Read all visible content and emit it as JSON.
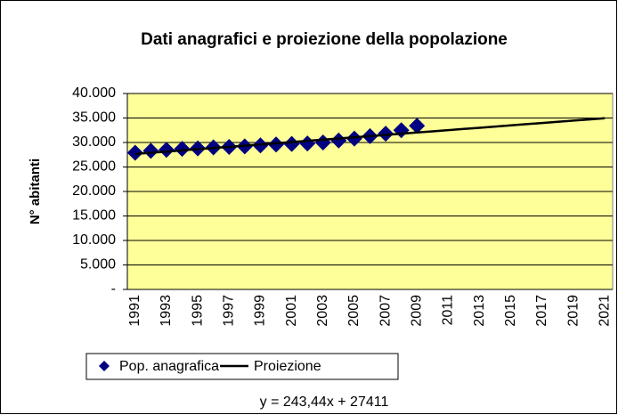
{
  "chart_data": {
    "type": "line",
    "title": "Dati anagrafici e proiezione della popolazione",
    "y_label": "N° abitanti",
    "annotation": "y = 243,44x + 27411",
    "categories": [
      "1991",
      null,
      "1993",
      null,
      "1995",
      null,
      "1997",
      null,
      "1999",
      null,
      "2001",
      null,
      "2003",
      null,
      "2005",
      null,
      "2007",
      null,
      "2009",
      null,
      "2011",
      null,
      "2013",
      null,
      "2015",
      null,
      "2017",
      null,
      "2019",
      null,
      "2021"
    ],
    "series": [
      {
        "name": "Pop. anagrafica",
        "color": "#000080",
        "marker": "diamond",
        "values": [
          27900,
          28300,
          28500,
          28700,
          28800,
          29000,
          29100,
          29200,
          29400,
          29600,
          29700,
          29800,
          30000,
          30400,
          30800,
          31300,
          31800,
          32500,
          33400,
          null,
          null,
          null,
          null,
          null,
          null,
          null,
          null,
          null,
          null,
          null,
          null
        ]
      },
      {
        "name": "Proiezione",
        "color": "#000000",
        "marker": "none",
        "values": [
          27654,
          27898,
          28141,
          28385,
          28628,
          28872,
          29115,
          29359,
          29602,
          29845,
          30089,
          30332,
          30576,
          30819,
          31063,
          31306,
          31549,
          31793,
          32036,
          32280,
          32523,
          32767,
          33010,
          33254,
          33497,
          33740,
          33984,
          34227,
          34471,
          34714,
          34958
        ]
      }
    ],
    "ylim": [
      0,
      40000
    ],
    "yticks": [
      {
        "value": 0,
        "label": "-"
      },
      {
        "value": 5000,
        "label": "5.000"
      },
      {
        "value": 10000,
        "label": "10.000"
      },
      {
        "value": 15000,
        "label": "15.000"
      },
      {
        "value": 20000,
        "label": "20.000"
      },
      {
        "value": 25000,
        "label": "25.000"
      },
      {
        "value": 30000,
        "label": "30.000"
      },
      {
        "value": 35000,
        "label": "35.000"
      },
      {
        "value": 40000,
        "label": "40.000"
      }
    ],
    "grid": true,
    "plot_background": "#ffff99",
    "legend": "bottom"
  }
}
